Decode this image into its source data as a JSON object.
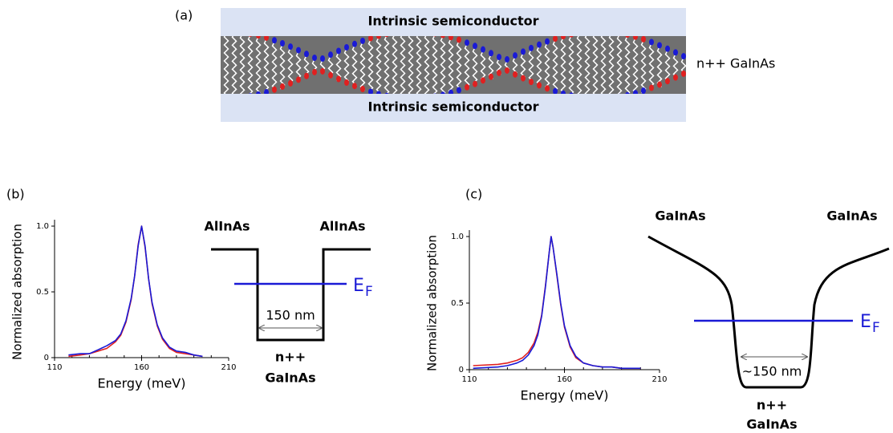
{
  "figure": {
    "panel_a": {
      "label": "(a)",
      "top_layer": "Intrinsic semiconductor",
      "bottom_layer": "Intrinsic semiconductor",
      "side_label": "n++ GaInAs"
    },
    "panel_b": {
      "label": "(b)",
      "left_barrier": "AlInAs",
      "right_barrier": "AlInAs",
      "fermi_main": "E",
      "fermi_sub": "F",
      "width": "150 nm",
      "well_top": "n++",
      "well_bottom": "GaInAs"
    },
    "panel_c": {
      "label": "(c)",
      "left_barrier": "GaInAs",
      "right_barrier": "GaInAs",
      "fermi_main": "E",
      "fermi_sub": "F",
      "width": "~150 nm",
      "well_top": "n++",
      "well_bottom": "GaInAs"
    }
  },
  "chart_data": [
    {
      "type": "line",
      "xlabel": "Energy (meV)",
      "ylabel": "Normalized absorption",
      "xlim": [
        110,
        210
      ],
      "ylim": [
        0,
        1
      ],
      "xticks": [
        110,
        160,
        210
      ],
      "yticks": [
        0,
        {
          "value": 0.5,
          "label": "0.5"
        },
        {
          "value": 1,
          "label": "1.0"
        }
      ],
      "x": [
        118,
        125,
        130,
        135,
        140,
        145,
        148,
        151,
        154,
        156,
        158,
        160,
        162,
        164,
        166,
        169,
        172,
        176,
        180,
        185,
        190,
        195
      ],
      "series": [
        {
          "color": "#e02020",
          "values": [
            0.01,
            0.02,
            0.03,
            0.05,
            0.07,
            0.12,
            0.17,
            0.27,
            0.44,
            0.62,
            0.86,
            1.0,
            0.84,
            0.6,
            0.41,
            0.24,
            0.14,
            0.07,
            0.04,
            0.03,
            0.02,
            0.01
          ]
        },
        {
          "color": "#1a1ad6",
          "values": [
            0.02,
            0.03,
            0.03,
            0.06,
            0.09,
            0.13,
            0.18,
            0.28,
            0.45,
            0.62,
            0.85,
            1.0,
            0.85,
            0.6,
            0.42,
            0.25,
            0.15,
            0.08,
            0.05,
            0.04,
            0.02,
            0.01
          ]
        }
      ]
    },
    {
      "type": "line",
      "xlabel": "Energy (meV)",
      "ylabel": "Normalized absorption",
      "xlim": [
        110,
        210
      ],
      "ylim": [
        0,
        1
      ],
      "xticks": [
        110,
        160,
        210
      ],
      "yticks": [
        0,
        {
          "value": 0.5,
          "label": "0.5"
        },
        {
          "value": 1,
          "label": "1.0"
        }
      ],
      "x": [
        112,
        125,
        130,
        135,
        138,
        141,
        144,
        146,
        148,
        150,
        152,
        153,
        154,
        156,
        158,
        160,
        163,
        166,
        170,
        175,
        180,
        185,
        190,
        200
      ],
      "series": [
        {
          "color": "#e02020",
          "values": [
            0.03,
            0.04,
            0.05,
            0.07,
            0.09,
            0.13,
            0.2,
            0.28,
            0.41,
            0.63,
            0.88,
            1.0,
            0.92,
            0.71,
            0.49,
            0.32,
            0.17,
            0.09,
            0.05,
            0.03,
            0.02,
            0.02,
            0.01,
            0.01
          ]
        },
        {
          "color": "#1a1ad6",
          "values": [
            0.01,
            0.02,
            0.03,
            0.05,
            0.07,
            0.11,
            0.18,
            0.26,
            0.4,
            0.62,
            0.88,
            1.0,
            0.92,
            0.72,
            0.5,
            0.33,
            0.18,
            0.1,
            0.05,
            0.03,
            0.02,
            0.02,
            0.01,
            0.01
          ]
        }
      ]
    }
  ]
}
